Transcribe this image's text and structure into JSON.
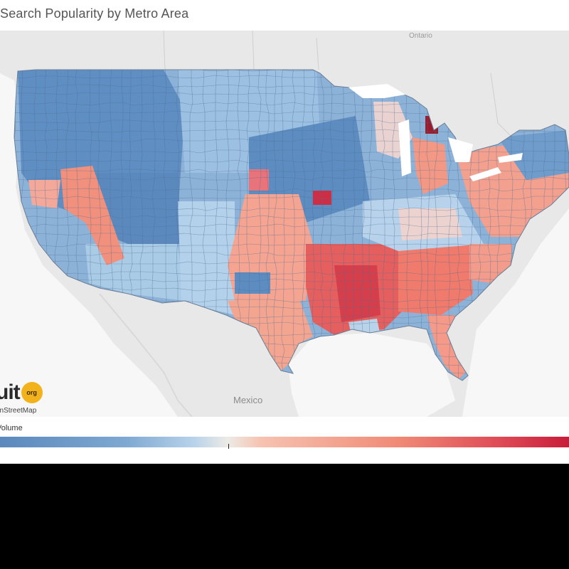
{
  "title": "Search Popularity by Metro Area",
  "map": {
    "labels": {
      "ontario": "Ontario",
      "mexico": "Mexico"
    },
    "attribution": {
      "logo_text": "uit",
      "logo_badge": "org",
      "credit": "enStreetMap"
    }
  },
  "legend": {
    "title": "Volume",
    "colors": {
      "low": "#5b89bd",
      "mid_low": "#a9cbe6",
      "neutral": "#ecebe6",
      "mid_high": "#f5a08c",
      "high": "#c81c3a"
    }
  },
  "icons": [
    "osm-logo-icon"
  ]
}
